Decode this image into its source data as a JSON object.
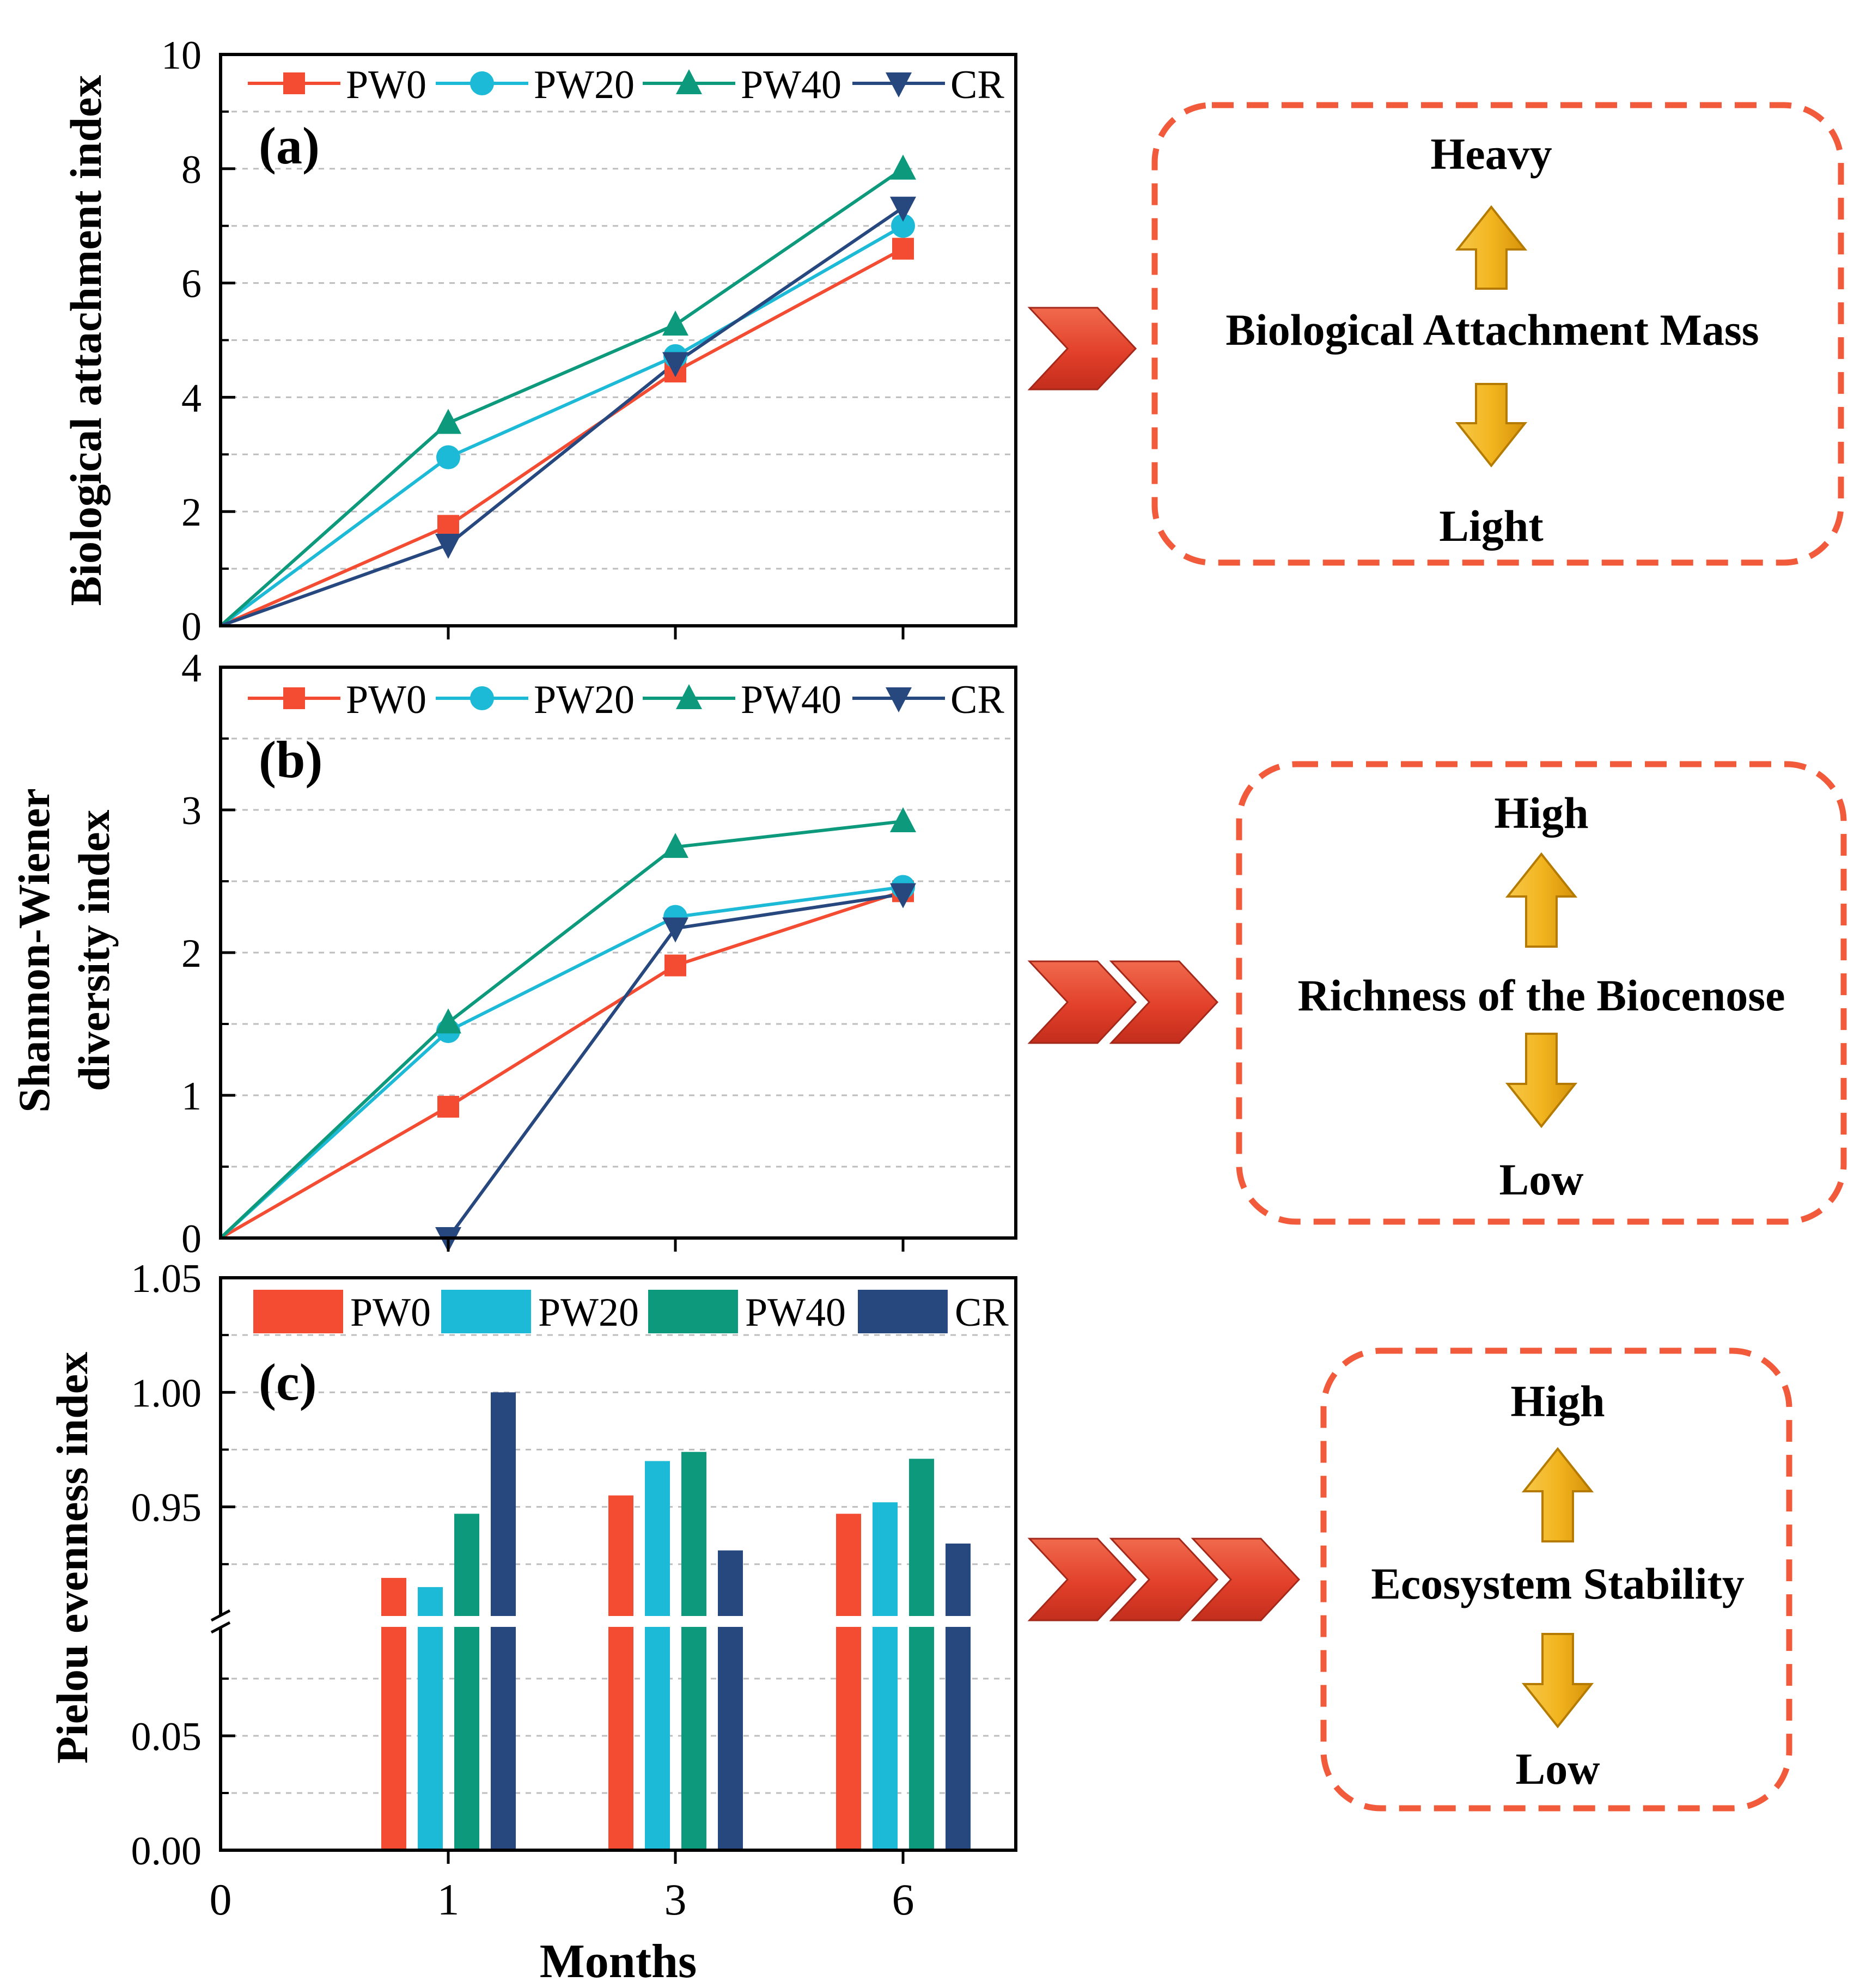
{
  "colors": {
    "PW0": "#f44c32",
    "PW20": "#1cbad6",
    "PW40": "#0d9a7c",
    "CR": "#27477f",
    "dash": "#f15a3a",
    "arrow": "#f2b51f",
    "chevron": "#e9482b"
  },
  "chart_data": [
    {
      "panel": "(a)",
      "type": "line",
      "ylabel": "Biological attachment index",
      "ylim": [
        0,
        10
      ],
      "yticks": [
        "0",
        "2",
        "4",
        "6",
        "8",
        "10"
      ],
      "categories": [
        "0",
        "1",
        "3",
        "6"
      ],
      "legend": [
        "PW0",
        "PW20",
        "PW40",
        "CR"
      ],
      "legend_position": "top",
      "series": [
        {
          "name": "PW0",
          "marker": "square",
          "values": [
            0,
            1.75,
            4.45,
            6.6
          ]
        },
        {
          "name": "PW20",
          "marker": "circle",
          "values": [
            0,
            2.95,
            4.72,
            7.0
          ]
        },
        {
          "name": "PW40",
          "marker": "triangle-up",
          "values": [
            0,
            3.55,
            5.27,
            8.0
          ]
        },
        {
          "name": "CR",
          "marker": "triangle-down",
          "values": [
            0,
            1.42,
            4.6,
            7.32
          ]
        }
      ]
    },
    {
      "panel": "(b)",
      "type": "line",
      "ylabel_lines": [
        "Shannon-Wiener",
        "diversity index"
      ],
      "ylim": [
        0,
        4
      ],
      "yticks": [
        "0",
        "1",
        "2",
        "3",
        "4"
      ],
      "categories": [
        "0",
        "1",
        "3",
        "6"
      ],
      "legend": [
        "PW0",
        "PW20",
        "PW40",
        "CR"
      ],
      "legend_position": "top",
      "series": [
        {
          "name": "PW0",
          "marker": "square",
          "values": [
            0,
            0.92,
            1.91,
            2.43
          ]
        },
        {
          "name": "PW20",
          "marker": "circle",
          "values": [
            0,
            1.45,
            2.25,
            2.46
          ]
        },
        {
          "name": "PW40",
          "marker": "triangle-up",
          "values": [
            0,
            1.51,
            2.74,
            2.92
          ]
        },
        {
          "name": "CR",
          "marker": "triangle-down",
          "values": [
            null,
            0.0,
            2.17,
            2.41
          ]
        }
      ]
    },
    {
      "panel": "(c)",
      "type": "bar",
      "ylabel": "Pielou evenness index",
      "xlabel": "Months",
      "broken_axis": true,
      "lower_ylim": [
        0,
        0.1
      ],
      "upper_ylim": [
        0.9,
        1.05
      ],
      "yticks": [
        "0.00",
        "0.05",
        "0.95",
        "1.00",
        "1.05"
      ],
      "categories": [
        "1",
        "3",
        "6"
      ],
      "xticks": [
        "0",
        "1",
        "3",
        "6"
      ],
      "legend": [
        "PW0",
        "PW20",
        "PW40",
        "CR"
      ],
      "legend_position": "top",
      "series": [
        {
          "name": "PW0",
          "values": [
            0.919,
            0.955,
            0.947
          ]
        },
        {
          "name": "PW20",
          "values": [
            0.915,
            0.97,
            0.952
          ]
        },
        {
          "name": "PW40",
          "values": [
            0.947,
            0.974,
            0.971
          ]
        },
        {
          "name": "CR",
          "values": [
            1.0,
            0.931,
            0.934
          ]
        }
      ]
    }
  ],
  "callouts": [
    {
      "top": "Heavy",
      "middle": "Biological Attachment Mass",
      "bottom": "Light",
      "chevrons": 1
    },
    {
      "top": "High",
      "middle": "Richness of the Biocenose",
      "bottom": "Low",
      "chevrons": 2
    },
    {
      "top": "High",
      "middle": "Ecosystem Stability",
      "bottom": "Low",
      "chevrons": 3
    }
  ]
}
